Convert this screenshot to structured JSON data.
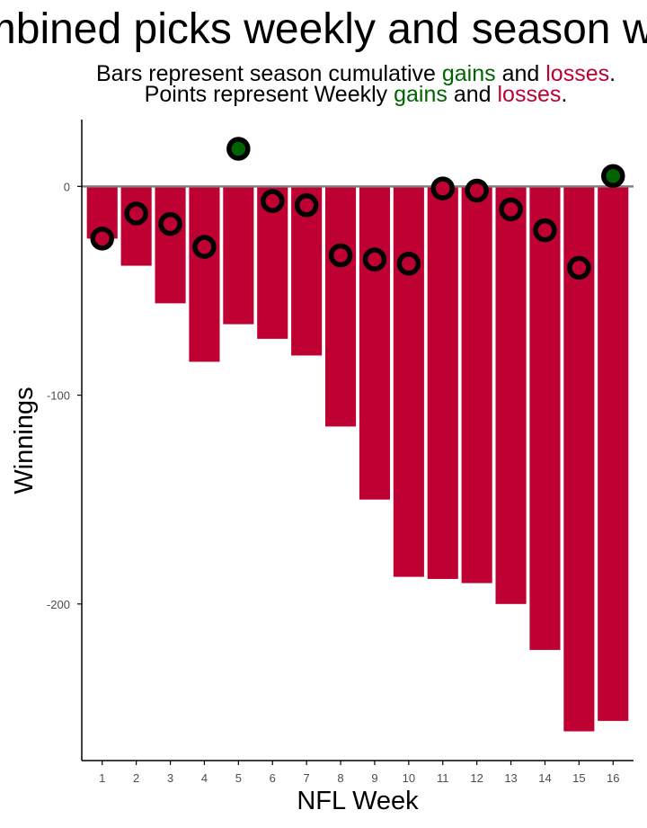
{
  "chart_data": {
    "type": "bar",
    "title": "Combined picks weekly and season winnings",
    "subtitle_lines": [
      [
        {
          "text": "Bars represent season cumulative ",
          "role": "plain"
        },
        {
          "text": "gains",
          "role": "gain"
        },
        {
          "text": " and ",
          "role": "plain"
        },
        {
          "text": "losses",
          "role": "loss"
        },
        {
          "text": ".",
          "role": "plain"
        }
      ],
      [
        {
          "text": "Points represent Weekly ",
          "role": "plain"
        },
        {
          "text": "gains",
          "role": "gain"
        },
        {
          "text": " and ",
          "role": "plain"
        },
        {
          "text": "losses",
          "role": "loss"
        },
        {
          "text": ".",
          "role": "plain"
        }
      ]
    ],
    "xlabel": "NFL Week",
    "ylabel": "Winnings",
    "x": [
      1,
      2,
      3,
      4,
      5,
      6,
      7,
      8,
      9,
      10,
      11,
      12,
      13,
      14,
      15,
      16
    ],
    "series": [
      {
        "kind": "bars",
        "values": [
          -25,
          -38,
          -56,
          -84,
          -66,
          -73,
          -81,
          -115,
          -150,
          -187,
          -188,
          -190,
          -200,
          -222,
          -261,
          -256
        ]
      },
      {
        "kind": "points",
        "values": [
          -25,
          -13,
          -18,
          -29,
          18,
          -7,
          -9,
          -33,
          -35,
          -37,
          -1,
          -2,
          -11,
          -21,
          -39,
          5
        ]
      }
    ],
    "yticks": [
      0,
      -100,
      -200
    ],
    "ylim": [
      -275,
      32
    ],
    "xlim": [
      0.4,
      16.6
    ],
    "grid": false,
    "colors": {
      "gain": "#006400",
      "loss": "#be0032",
      "zero_line": "#808080",
      "axis": "#000000",
      "tick_label": "#4d4d4d",
      "point_outline": "#000000"
    }
  }
}
